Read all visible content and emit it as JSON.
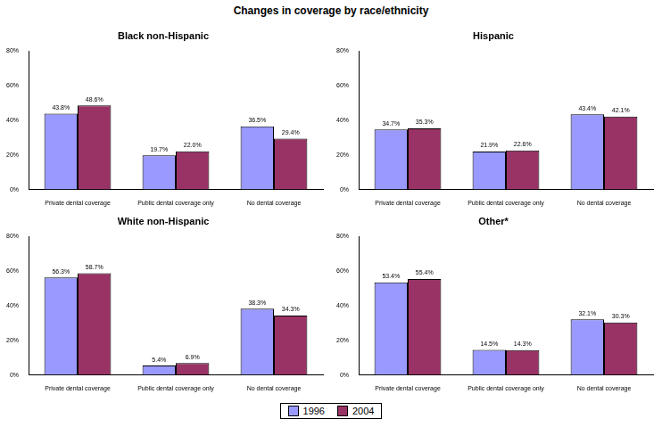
{
  "title": "Changes in coverage by race/ethnicity",
  "legend": "bottom",
  "chart_data": [
    {
      "type": "bar",
      "title": "Black non-Hispanic",
      "categories": [
        "Private dental coverage",
        "Public dental coverage only",
        "No dental coverage"
      ],
      "series": [
        {
          "name": "1996",
          "color": "#9999ff",
          "values": [
            43.8,
            19.7,
            36.5
          ],
          "value_labels": [
            "43.8%",
            "19.7%",
            "36.5%"
          ]
        },
        {
          "name": "2004",
          "color": "#993366",
          "values": [
            48.6,
            22.0,
            29.4
          ],
          "value_labels": [
            "48.6%",
            "22.0%",
            "29.4%"
          ]
        }
      ],
      "ylim": [
        0,
        80
      ],
      "yticks": [
        {
          "value": 0,
          "label": "0%"
        },
        {
          "value": 20,
          "label": "20%"
        },
        {
          "value": 40,
          "label": "40%"
        },
        {
          "value": 60,
          "label": "60%"
        },
        {
          "value": 80,
          "label": "80%"
        }
      ],
      "grid": false,
      "data_labels": true
    },
    {
      "type": "bar",
      "title": "Hispanic",
      "categories": [
        "Private dental coverage",
        "Public dental coverage only",
        "No dental coverage"
      ],
      "series": [
        {
          "name": "1996",
          "color": "#9999ff",
          "values": [
            34.7,
            21.9,
            43.4
          ],
          "value_labels": [
            "34.7%",
            "21.9%",
            "43.4%"
          ]
        },
        {
          "name": "2004",
          "color": "#993366",
          "values": [
            35.3,
            22.6,
            42.1
          ],
          "value_labels": [
            "35.3%",
            "22.6%",
            "42.1%"
          ]
        }
      ],
      "ylim": [
        0,
        80
      ],
      "yticks": [
        {
          "value": 0,
          "label": "0%"
        },
        {
          "value": 20,
          "label": "20%"
        },
        {
          "value": 40,
          "label": "40%"
        },
        {
          "value": 60,
          "label": "60%"
        },
        {
          "value": 80,
          "label": "80%"
        }
      ],
      "grid": false,
      "data_labels": true
    },
    {
      "type": "bar",
      "title": "White non-Hispanic",
      "categories": [
        "Private dental coverage",
        "Public dental coverage only",
        "No dental coverage"
      ],
      "series": [
        {
          "name": "1996",
          "color": "#9999ff",
          "values": [
            56.3,
            5.4,
            38.3
          ],
          "value_labels": [
            "56.3%",
            "5.4%",
            "38.3%"
          ]
        },
        {
          "name": "2004",
          "color": "#993366",
          "values": [
            58.7,
            6.9,
            34.3
          ],
          "value_labels": [
            "58.7%",
            "6.9%",
            "34.3%"
          ]
        }
      ],
      "ylim": [
        0,
        80
      ],
      "yticks": [
        {
          "value": 0,
          "label": "0%"
        },
        {
          "value": 20,
          "label": "20%"
        },
        {
          "value": 40,
          "label": "40%"
        },
        {
          "value": 60,
          "label": "60%"
        },
        {
          "value": 80,
          "label": "80%"
        }
      ],
      "grid": false,
      "data_labels": true
    },
    {
      "type": "bar",
      "title": "Other*",
      "categories": [
        "Private dental coverage",
        "Public dental coverage only",
        "No dental coverage"
      ],
      "series": [
        {
          "name": "1996",
          "color": "#9999ff",
          "values": [
            53.4,
            14.5,
            32.1
          ],
          "value_labels": [
            "53.4%",
            "14.5%",
            "32.1%"
          ]
        },
        {
          "name": "2004",
          "color": "#993366",
          "values": [
            55.4,
            14.3,
            30.3
          ],
          "value_labels": [
            "55.4%",
            "14.3%",
            "30.3%"
          ]
        }
      ],
      "ylim": [
        0,
        80
      ],
      "yticks": [
        {
          "value": 0,
          "label": "0%"
        },
        {
          "value": 20,
          "label": "20%"
        },
        {
          "value": 40,
          "label": "40%"
        },
        {
          "value": 60,
          "label": "60%"
        },
        {
          "value": 80,
          "label": "80%"
        }
      ],
      "grid": false,
      "data_labels": true
    }
  ]
}
